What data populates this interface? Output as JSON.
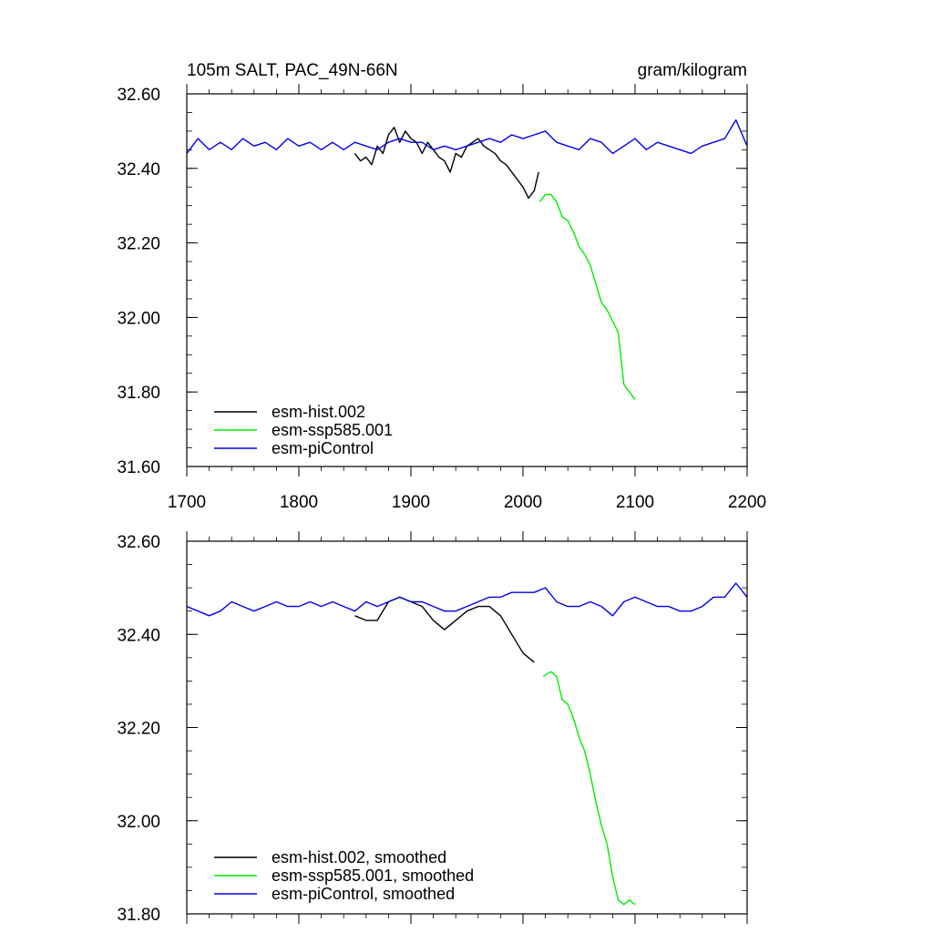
{
  "chart_data": [
    {
      "type": "line",
      "title_left": "105m SALT, PAC_49N-66N",
      "title_right": "gram/kilogram",
      "xlabel": "",
      "ylabel": "",
      "xlim": [
        1700,
        2200
      ],
      "ylim": [
        31.6,
        32.6
      ],
      "x_ticks": [
        1700,
        1800,
        1900,
        2000,
        2100,
        2200
      ],
      "x_tick_labels": [
        "1700",
        "1800",
        "1900",
        "2000",
        "2100",
        "2200"
      ],
      "y_ticks": [
        31.6,
        31.8,
        32.0,
        32.2,
        32.4,
        32.6
      ],
      "y_tick_labels": [
        "31.60",
        "31.80",
        "32.00",
        "32.20",
        "32.40",
        "32.60"
      ],
      "legend_position": "bottom-left",
      "series": [
        {
          "name": "esm-hist.002",
          "color": "#000000",
          "x": [
            1850,
            1855,
            1860,
            1865,
            1870,
            1875,
            1880,
            1885,
            1890,
            1895,
            1900,
            1905,
            1910,
            1915,
            1920,
            1925,
            1930,
            1935,
            1940,
            1945,
            1950,
            1955,
            1960,
            1965,
            1970,
            1975,
            1980,
            1985,
            1990,
            1995,
            2000,
            2005,
            2010,
            2014
          ],
          "values": [
            32.44,
            32.42,
            32.43,
            32.41,
            32.46,
            32.44,
            32.49,
            32.51,
            32.47,
            32.5,
            32.48,
            32.47,
            32.44,
            32.47,
            32.45,
            32.43,
            32.42,
            32.39,
            32.44,
            32.43,
            32.46,
            32.47,
            32.48,
            32.46,
            32.45,
            32.44,
            32.42,
            32.41,
            32.39,
            32.37,
            32.35,
            32.32,
            32.34,
            32.39
          ]
        },
        {
          "name": "esm-ssp585.001",
          "color": "#00ee00",
          "x": [
            2015,
            2020,
            2025,
            2030,
            2035,
            2040,
            2045,
            2050,
            2055,
            2060,
            2065,
            2070,
            2075,
            2080,
            2085,
            2090,
            2095,
            2100
          ],
          "values": [
            32.31,
            32.33,
            32.33,
            32.31,
            32.27,
            32.26,
            32.23,
            32.19,
            32.17,
            32.14,
            32.09,
            32.04,
            32.02,
            31.99,
            31.96,
            31.82,
            31.8,
            31.78
          ]
        },
        {
          "name": "esm-piControl",
          "color": "#0000ee",
          "x": [
            1700,
            1710,
            1720,
            1730,
            1740,
            1750,
            1760,
            1770,
            1780,
            1790,
            1800,
            1810,
            1820,
            1830,
            1840,
            1850,
            1860,
            1870,
            1880,
            1890,
            1900,
            1910,
            1920,
            1930,
            1940,
            1950,
            1960,
            1970,
            1980,
            1990,
            2000,
            2010,
            2020,
            2030,
            2040,
            2050,
            2060,
            2070,
            2080,
            2090,
            2100,
            2110,
            2120,
            2130,
            2140,
            2150,
            2160,
            2170,
            2180,
            2190,
            2200
          ],
          "values": [
            32.44,
            32.48,
            32.45,
            32.47,
            32.45,
            32.48,
            32.46,
            32.47,
            32.45,
            32.48,
            32.46,
            32.47,
            32.45,
            32.47,
            32.45,
            32.47,
            32.46,
            32.45,
            32.47,
            32.48,
            32.47,
            32.47,
            32.45,
            32.46,
            32.45,
            32.46,
            32.47,
            32.48,
            32.47,
            32.49,
            32.48,
            32.49,
            32.5,
            32.47,
            32.46,
            32.45,
            32.48,
            32.47,
            32.44,
            32.46,
            32.48,
            32.45,
            32.47,
            32.46,
            32.45,
            32.44,
            32.46,
            32.47,
            32.48,
            32.53,
            32.46
          ]
        }
      ]
    },
    {
      "type": "line",
      "title_left": "",
      "title_right": "",
      "xlabel": "",
      "ylabel": "",
      "xlim": [
        1700,
        2200
      ],
      "ylim": [
        31.8,
        32.6
      ],
      "x_ticks": [
        1700,
        1800,
        1900,
        2000,
        2100,
        2200
      ],
      "x_tick_labels": [],
      "y_ticks": [
        31.8,
        32.0,
        32.2,
        32.4,
        32.6
      ],
      "y_tick_labels": [
        "31.80",
        "32.00",
        "32.20",
        "32.40",
        "32.60"
      ],
      "legend_position": "bottom-left",
      "series": [
        {
          "name": "esm-hist.002, smoothed",
          "color": "#000000",
          "x": [
            1850,
            1860,
            1870,
            1880,
            1890,
            1900,
            1910,
            1920,
            1930,
            1940,
            1950,
            1960,
            1970,
            1980,
            1990,
            2000,
            2010
          ],
          "values": [
            32.44,
            32.43,
            32.43,
            32.47,
            32.48,
            32.47,
            32.46,
            32.43,
            32.41,
            32.43,
            32.45,
            32.46,
            32.46,
            32.44,
            32.4,
            32.36,
            32.34
          ]
        },
        {
          "name": "esm-ssp585.001, smoothed",
          "color": "#00ee00",
          "x": [
            2018,
            2025,
            2030,
            2035,
            2040,
            2045,
            2050,
            2055,
            2060,
            2065,
            2070,
            2075,
            2080,
            2085,
            2090,
            2095,
            2100
          ],
          "values": [
            32.31,
            32.32,
            32.31,
            32.26,
            32.25,
            32.22,
            32.18,
            32.15,
            32.1,
            32.04,
            31.99,
            31.95,
            31.88,
            31.83,
            31.82,
            31.83,
            31.82
          ]
        },
        {
          "name": "esm-piControl, smoothed",
          "color": "#0000ee",
          "x": [
            1700,
            1710,
            1720,
            1730,
            1740,
            1750,
            1760,
            1770,
            1780,
            1790,
            1800,
            1810,
            1820,
            1830,
            1840,
            1850,
            1860,
            1870,
            1880,
            1890,
            1900,
            1910,
            1920,
            1930,
            1940,
            1950,
            1960,
            1970,
            1980,
            1990,
            2000,
            2010,
            2020,
            2030,
            2040,
            2050,
            2060,
            2070,
            2080,
            2090,
            2100,
            2110,
            2120,
            2130,
            2140,
            2150,
            2160,
            2170,
            2180,
            2190,
            2200
          ],
          "values": [
            32.46,
            32.45,
            32.44,
            32.45,
            32.47,
            32.46,
            32.45,
            32.46,
            32.47,
            32.46,
            32.46,
            32.47,
            32.46,
            32.47,
            32.46,
            32.45,
            32.47,
            32.46,
            32.47,
            32.48,
            32.47,
            32.47,
            32.46,
            32.45,
            32.45,
            32.46,
            32.47,
            32.48,
            32.48,
            32.49,
            32.49,
            32.49,
            32.5,
            32.47,
            32.46,
            32.46,
            32.47,
            32.46,
            32.44,
            32.47,
            32.48,
            32.47,
            32.46,
            32.46,
            32.45,
            32.45,
            32.46,
            32.48,
            32.48,
            32.51,
            32.48
          ]
        }
      ]
    }
  ]
}
